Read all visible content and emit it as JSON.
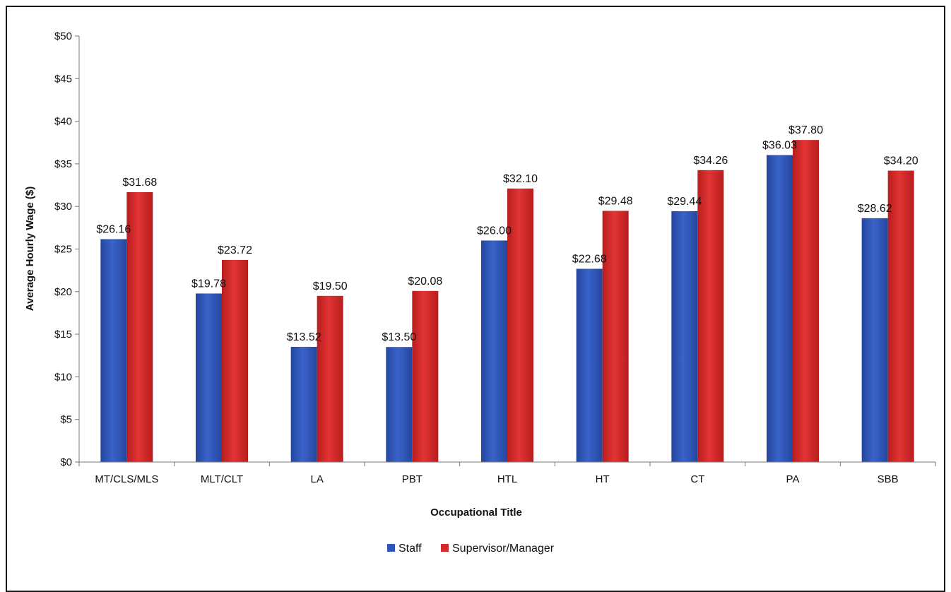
{
  "chart_data": {
    "type": "bar",
    "title": "",
    "xlabel": "Occupational Title",
    "ylabel": "Average Hourly Wage ($)",
    "ylim": [
      0,
      50
    ],
    "yticks": [
      0,
      5,
      10,
      15,
      20,
      25,
      30,
      35,
      40,
      45,
      50
    ],
    "ytick_labels": [
      "$0",
      "$5",
      "$10",
      "$15",
      "$20",
      "$25",
      "$30",
      "$35",
      "$40",
      "$45",
      "$50"
    ],
    "grid": false,
    "legend_position": "bottom",
    "categories": [
      "MT/CLS/MLS",
      "MLT/CLT",
      "LA",
      "PBT",
      "HTL",
      "HT",
      "CT",
      "PA",
      "SBB"
    ],
    "series": [
      {
        "name": "Staff",
        "color": "#2e55b8",
        "values": [
          26.16,
          19.78,
          13.52,
          13.5,
          26.0,
          22.68,
          29.44,
          36.03,
          28.62
        ],
        "labels": [
          "$26.16",
          "$19.78",
          "$13.52",
          "$13.50",
          "$26.00",
          "$22.68",
          "$29.44",
          "$36.03",
          "$28.62"
        ]
      },
      {
        "name": "Supervisor/Manager",
        "color": "#d42a2a",
        "values": [
          31.68,
          23.72,
          19.5,
          20.08,
          32.1,
          29.48,
          34.26,
          37.8,
          34.2
        ],
        "labels": [
          "$31.68",
          "$23.72",
          "$19.50",
          "$20.08",
          "$32.10",
          "$29.48",
          "$34.26",
          "$37.80",
          "$34.20"
        ]
      }
    ]
  }
}
